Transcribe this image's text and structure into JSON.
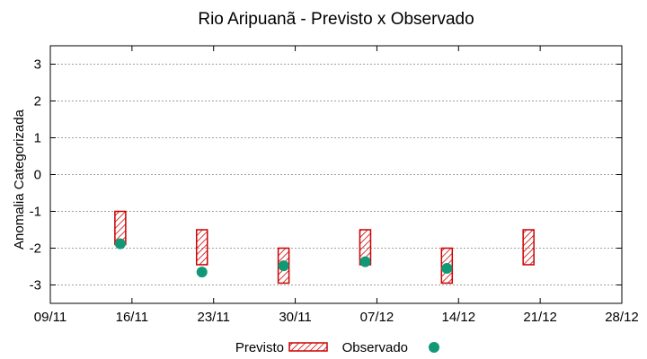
{
  "chart_data": {
    "type": "range-bar-with-points",
    "title": "Rio Aripuanã - Previsto x Observado",
    "ylabel": "Anomalia Categorizada",
    "xlabel": "",
    "x_ticks": [
      "09/11",
      "16/11",
      "23/11",
      "30/11",
      "07/12",
      "14/12",
      "21/12",
      "28/12"
    ],
    "xlim": [
      "09/11",
      "28/12"
    ],
    "ylim": [
      -3.5,
      3.5
    ],
    "y_ticks": [
      -3,
      -2,
      -1,
      0,
      1,
      2,
      3
    ],
    "y_tick_labels": [
      "-3",
      "-2",
      "-1",
      "0",
      "1",
      "2",
      "3"
    ],
    "grid": true,
    "legend_position": "bottom-center",
    "series": [
      {
        "name": "Previsto",
        "kind": "range",
        "color": "#cc0000",
        "pattern": "diagonal-hatch",
        "points": [
          {
            "x": "15/11",
            "low": -1.9,
            "high": -1.0
          },
          {
            "x": "22/11",
            "low": -2.45,
            "high": -1.5
          },
          {
            "x": "29/11",
            "low": -2.95,
            "high": -2.0
          },
          {
            "x": "06/12",
            "low": -2.45,
            "high": -1.5
          },
          {
            "x": "13/12",
            "low": -2.95,
            "high": -2.0
          },
          {
            "x": "20/12",
            "low": -2.45,
            "high": -1.5
          }
        ]
      },
      {
        "name": "Observado",
        "kind": "point",
        "color": "#119977",
        "points": [
          {
            "x": "15/11",
            "y": -1.88
          },
          {
            "x": "22/11",
            "y": -2.65
          },
          {
            "x": "29/11",
            "y": -2.48
          },
          {
            "x": "06/12",
            "y": -2.37
          },
          {
            "x": "13/12",
            "y": -2.55
          }
        ]
      }
    ]
  }
}
